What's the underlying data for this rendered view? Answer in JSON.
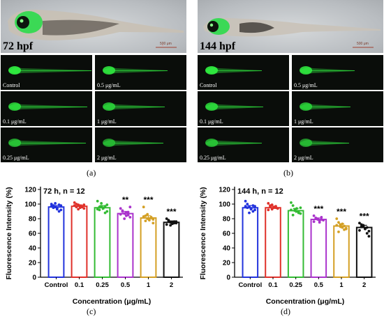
{
  "panels": {
    "a": {
      "stage": "72 hpf",
      "scale_label": "500 μm",
      "caption": "(a)",
      "tiles": [
        "Control",
        "0.5 μg/mL",
        "0.1 μg/mL",
        "1 μg/mL",
        "0.25 μg/mL",
        "2 μg/mL"
      ]
    },
    "b": {
      "stage": "144 hpf",
      "scale_label": "500 μm",
      "caption": "(b)",
      "tiles": [
        "Control",
        "0.5 μg/mL",
        "0.1 μg/mL",
        "1 μg/mL",
        "0.25 μg/mL",
        "2 μg/mL"
      ]
    },
    "c": {
      "caption": "(c)"
    },
    "d": {
      "caption": "(d)"
    }
  },
  "colors": {
    "control": "#2233dd",
    "c0_1": "#e0312a",
    "c0_25": "#33bb33",
    "c0_5": "#aa33cc",
    "c1": "#d4a025",
    "c2": "#111111",
    "fluor": "#33ff44"
  },
  "chart_data": [
    {
      "type": "bar",
      "title": "72 h, n = 12",
      "xlabel": "Concentration (μg/mL)",
      "ylabel": "Fluorescence Intensity (%)",
      "ylim": [
        0,
        120
      ],
      "yticks": [
        "0",
        "20",
        "40",
        "60",
        "80",
        "100",
        "120"
      ],
      "categories": [
        "Control",
        "0.1",
        "0.25",
        "0.5",
        "1",
        "2"
      ],
      "values": [
        96,
        97,
        95,
        87,
        81,
        75
      ],
      "errors": [
        2,
        2,
        3,
        3,
        3,
        2
      ],
      "significance": [
        "",
        "",
        "",
        "**",
        "***",
        "***"
      ],
      "points": [
        [
          100,
          98,
          96,
          94,
          99,
          92,
          97,
          95,
          101,
          93,
          90,
          98
        ],
        [
          102,
          96,
          99,
          95,
          97,
          94,
          98,
          100,
          93,
          97,
          96,
          99
        ],
        [
          104,
          92,
          97,
          95,
          88,
          99,
          93,
          96,
          101,
          94,
          97,
          90
        ],
        [
          94,
          90,
          87,
          84,
          89,
          82,
          86,
          91,
          80,
          88,
          85,
          96
        ],
        [
          96,
          84,
          80,
          78,
          82,
          79,
          83,
          77,
          86,
          80,
          81,
          74
        ],
        [
          80,
          77,
          75,
          73,
          76,
          74,
          72,
          78,
          71,
          75,
          74,
          76
        ]
      ]
    },
    {
      "type": "bar",
      "title": "144 h, n = 12",
      "xlabel": "Concentration (μg/mL)",
      "ylabel": "Fluorescence Intensity (%)",
      "ylim": [
        0,
        120
      ],
      "yticks": [
        "0",
        "20",
        "40",
        "60",
        "80",
        "100",
        "120"
      ],
      "categories": [
        "Control",
        "0.1",
        "0.25",
        "0.5",
        "1",
        "2"
      ],
      "values": [
        95,
        95,
        91,
        79,
        70,
        68
      ],
      "errors": [
        3,
        2,
        3,
        2,
        3,
        3
      ],
      "significance": [
        "",
        "",
        "",
        "***",
        "***",
        "***"
      ],
      "points": [
        [
          104,
          100,
          96,
          94,
          98,
          92,
          97,
          95,
          88,
          93,
          90,
          97
        ],
        [
          101,
          96,
          99,
          95,
          97,
          94,
          92,
          98,
          93,
          96,
          95,
          94
        ],
        [
          102,
          98,
          93,
          90,
          88,
          95,
          92,
          85,
          91,
          94,
          89,
          87
        ],
        [
          84,
          80,
          79,
          77,
          82,
          78,
          76,
          81,
          80,
          75,
          79,
          78
        ],
        [
          80,
          75,
          72,
          68,
          70,
          66,
          71,
          62,
          69,
          73,
          65,
          67
        ],
        [
          74,
          72,
          70,
          66,
          68,
          56,
          64,
          69,
          71,
          67,
          60,
          63
        ]
      ]
    }
  ]
}
